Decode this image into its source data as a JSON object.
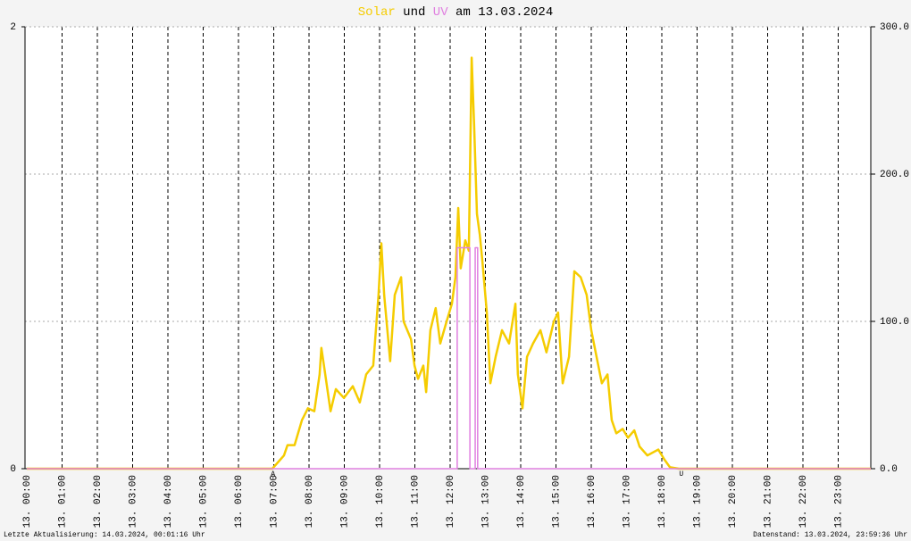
{
  "chart_data": {
    "type": "line",
    "title_connector": "und",
    "title_date": "am 13.03.2024",
    "xlim": [
      0,
      24
    ],
    "xticks": [
      {
        "value": 0,
        "label": "13. 00:00"
      },
      {
        "value": 1,
        "label": "13. 01:00"
      },
      {
        "value": 2,
        "label": "13. 02:00"
      },
      {
        "value": 3,
        "label": "13. 03:00"
      },
      {
        "value": 4,
        "label": "13. 04:00"
      },
      {
        "value": 5,
        "label": "13. 05:00"
      },
      {
        "value": 6,
        "label": "13. 06:00"
      },
      {
        "value": 7,
        "label": "13. 07:00"
      },
      {
        "value": 8,
        "label": "13. 08:00"
      },
      {
        "value": 9,
        "label": "13. 09:00"
      },
      {
        "value": 10,
        "label": "13. 10:00"
      },
      {
        "value": 11,
        "label": "13. 11:00"
      },
      {
        "value": 12,
        "label": "13. 12:00"
      },
      {
        "value": 13,
        "label": "13. 13:00"
      },
      {
        "value": 14,
        "label": "13. 14:00"
      },
      {
        "value": 15,
        "label": "13. 15:00"
      },
      {
        "value": 16,
        "label": "13. 16:00"
      },
      {
        "value": 17,
        "label": "13. 17:00"
      },
      {
        "value": 18,
        "label": "13. 18:00"
      },
      {
        "value": 19,
        "label": "13. 19:00"
      },
      {
        "value": 20,
        "label": "13. 20:00"
      },
      {
        "value": 21,
        "label": "13. 21:00"
      },
      {
        "value": 22,
        "label": "13. 22:00"
      },
      {
        "value": 23,
        "label": "13. 23:00"
      }
    ],
    "ylim": [
      0,
      2
    ],
    "yticks": [
      0,
      2
    ],
    "y2lim": [
      0,
      300
    ],
    "y2ticks": [
      {
        "value": 0,
        "label": "0.0"
      },
      {
        "value": 100,
        "label": "100.0"
      },
      {
        "value": 200,
        "label": "200.0"
      },
      {
        "value": 300,
        "label": "300.0"
      }
    ],
    "grid": true,
    "series": [
      {
        "name": "Solar",
        "color": "#f5cc00",
        "axis": "y2",
        "x": [
          0,
          6.96,
          7.29,
          7.39,
          7.59,
          7.8,
          7.97,
          8.15,
          8.3,
          8.35,
          8.46,
          8.61,
          8.76,
          8.99,
          9.24,
          9.44,
          9.62,
          9.82,
          9.97,
          10.05,
          10.13,
          10.3,
          10.43,
          10.61,
          10.68,
          10.89,
          10.99,
          11.09,
          11.24,
          11.32,
          11.44,
          11.59,
          11.72,
          11.9,
          12.05,
          12.15,
          12.23,
          12.3,
          12.43,
          12.53,
          12.61,
          12.68,
          12.76,
          12.84,
          12.91,
          13.04,
          13.14,
          13.29,
          13.47,
          13.67,
          13.85,
          13.92,
          14.05,
          14.18,
          14.35,
          14.56,
          14.73,
          14.94,
          15.06,
          15.19,
          15.37,
          15.52,
          15.7,
          15.87,
          16.0,
          16.15,
          16.3,
          16.46,
          16.58,
          16.71,
          16.89,
          17.04,
          17.22,
          17.37,
          17.59,
          17.9,
          18.08,
          18.23,
          18.48,
          24
        ],
        "values": [
          0,
          0,
          9,
          16,
          16,
          33,
          41,
          39,
          64,
          82,
          64,
          39,
          54,
          48,
          56,
          45,
          64,
          70,
          118,
          153,
          118,
          73,
          118,
          130,
          100,
          88,
          70,
          61,
          70,
          52,
          94,
          109,
          85,
          100,
          112,
          130,
          177,
          136,
          155,
          148,
          279,
          233,
          173,
          159,
          142,
          106,
          58,
          76,
          94,
          85,
          112,
          64,
          41,
          76,
          85,
          94,
          79,
          100,
          106,
          58,
          76,
          134,
          130,
          118,
          94,
          76,
          58,
          64,
          33,
          24,
          27,
          21,
          26,
          15,
          9,
          13,
          6,
          1,
          0,
          0
        ]
      },
      {
        "name": "UV",
        "color": "#e080e0",
        "axis": "y",
        "x": [
          0,
          12.2,
          12.2,
          12.56,
          12.56,
          12.71,
          12.71,
          12.78,
          12.78,
          24
        ],
        "values": [
          0,
          0,
          1,
          1,
          0,
          0,
          1,
          1,
          0,
          0
        ]
      }
    ],
    "annotations": [
      {
        "text": "A",
        "x": 6.98
      },
      {
        "text": "U",
        "x": 18.55
      }
    ],
    "footer_left": "Letzte Aktualisierung: 14.03.2024, 00:01:16 Uhr",
    "footer_right": "Datenstand: 13.03.2024, 23:59:36 Uhr"
  }
}
